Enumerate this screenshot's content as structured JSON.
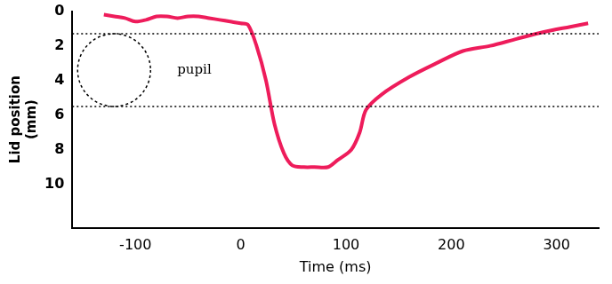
{
  "chart_data": {
    "type": "line",
    "xlabel": "Time (ms)",
    "ylabel": [
      "Lid position",
      "(mm)"
    ],
    "x": [
      -130,
      -120,
      -110,
      -100,
      -90,
      -80,
      -70,
      -60,
      -50,
      -40,
      -30,
      -20,
      -10,
      0,
      7,
      15,
      24,
      32,
      41,
      49,
      60,
      70,
      83,
      92,
      105,
      113,
      119,
      134,
      160,
      186,
      211,
      237,
      262,
      288,
      313,
      330
    ],
    "values": [
      0.2,
      0.3,
      0.4,
      0.6,
      0.5,
      0.3,
      0.3,
      0.4,
      0.3,
      0.3,
      0.4,
      0.5,
      0.6,
      0.7,
      0.8,
      2.0,
      4.0,
      6.5,
      8.2,
      8.9,
      9.0,
      9.0,
      9.0,
      8.6,
      8.0,
      7.0,
      5.7,
      4.8,
      3.8,
      3.0,
      2.3,
      2.0,
      1.6,
      1.2,
      0.9,
      0.7
    ],
    "color": "#ee1c5b",
    "xlim": [
      -160,
      340
    ],
    "xticks": [
      -100,
      0,
      100,
      200,
      300
    ],
    "ylim": [
      0,
      12.5
    ],
    "yticks": [
      0,
      2,
      4,
      6,
      8,
      10
    ],
    "grid": false,
    "annotation": "pupil",
    "pupil_bounds": [
      1.3,
      5.5
    ]
  }
}
